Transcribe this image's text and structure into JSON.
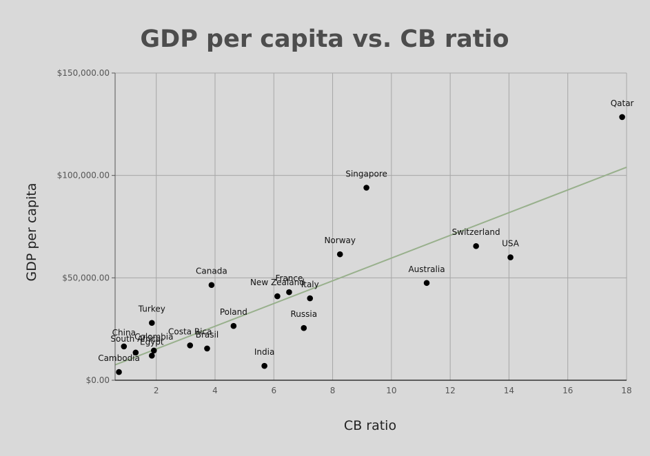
{
  "chart_data": {
    "type": "scatter",
    "title": "GDP per capita vs. CB ratio",
    "xlabel": "CB ratio",
    "ylabel": "GDP per capita",
    "xlim": [
      0.6,
      18
    ],
    "ylim": [
      0,
      150000
    ],
    "x_ticks": [
      2,
      4,
      6,
      8,
      10,
      12,
      14,
      16,
      18
    ],
    "x_tick_labels": [
      "2",
      "4",
      "6",
      "8",
      "10",
      "12",
      "14",
      "16",
      "18"
    ],
    "y_ticks": [
      0,
      50000,
      100000,
      150000
    ],
    "y_tick_labels": [
      "$0.00",
      "$50,000.00",
      "$100,000.00",
      "$150,000.00"
    ],
    "grid": true,
    "colors": {
      "point": "#000000",
      "trendline": "#98b08c",
      "grid": "#a6a6a6",
      "background": "#d9d9d9"
    },
    "trendline": {
      "type": "linear",
      "x": [
        0.6,
        18
      ],
      "y": [
        7500,
        104000
      ]
    },
    "points": [
      {
        "label": "Qatar",
        "x": 17.85,
        "y": 128500
      },
      {
        "label": "Singapore",
        "x": 9.15,
        "y": 94000
      },
      {
        "label": "Switzerland",
        "x": 12.88,
        "y": 65500
      },
      {
        "label": "USA",
        "x": 14.05,
        "y": 60000
      },
      {
        "label": "Norway",
        "x": 8.25,
        "y": 61500
      },
      {
        "label": "Australia",
        "x": 11.2,
        "y": 47500
      },
      {
        "label": "Canada",
        "x": 3.88,
        "y": 46500
      },
      {
        "label": "France",
        "x": 6.52,
        "y": 43000
      },
      {
        "label": "New Zealand",
        "x": 6.12,
        "y": 41000
      },
      {
        "label": "Italy",
        "x": 7.23,
        "y": 40000
      },
      {
        "label": "Russia",
        "x": 7.02,
        "y": 25500
      },
      {
        "label": "Poland",
        "x": 4.63,
        "y": 26500
      },
      {
        "label": "Turkey",
        "x": 1.85,
        "y": 28000
      },
      {
        "label": "Costa Rica",
        "x": 3.15,
        "y": 17000
      },
      {
        "label": "Brasil",
        "x": 3.73,
        "y": 15500
      },
      {
        "label": "India",
        "x": 5.68,
        "y": 7000
      },
      {
        "label": "China",
        "x": 0.9,
        "y": 16500
      },
      {
        "label": "Colombia",
        "x": 1.92,
        "y": 14500
      },
      {
        "label": "South Africa",
        "x": 1.3,
        "y": 13500
      },
      {
        "label": "Egypt",
        "x": 1.85,
        "y": 12000
      },
      {
        "label": "Cambodia",
        "x": 0.73,
        "y": 4000
      }
    ]
  }
}
